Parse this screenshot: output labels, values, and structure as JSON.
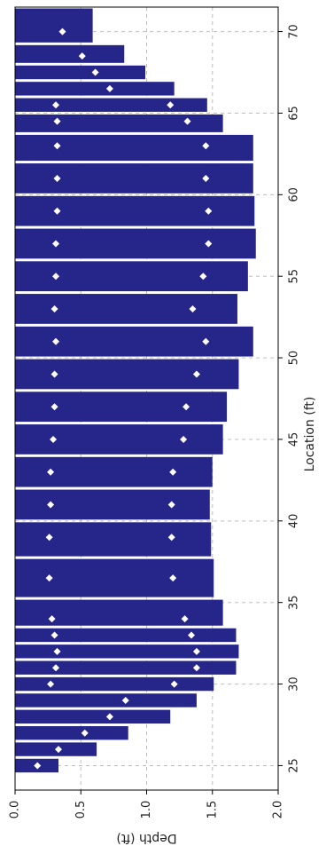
{
  "chart_data": {
    "type": "bar",
    "orientation": "horizontal-bars-rotated",
    "xlabel": "Location (ft)",
    "ylabel": "Depth (ft)",
    "x_ticks": [
      "25",
      "30",
      "35",
      "40",
      "45",
      "50",
      "55",
      "60",
      "65",
      "70"
    ],
    "y_ticks": [
      "0.0",
      "0.5",
      "1.0",
      "1.5",
      "2.0"
    ],
    "xlim": [
      23.5,
      71.5
    ],
    "ylim": [
      0,
      2.0
    ],
    "grid": true,
    "colors": {
      "bar": "#26268a",
      "marker": "#ffffff",
      "grid": "#bdbdbd"
    },
    "bars": [
      {
        "x": 25.0,
        "depth": 0.33,
        "markers": [
          0.17
        ]
      },
      {
        "x": 26.0,
        "depth": 0.62,
        "markers": [
          0.33
        ]
      },
      {
        "x": 27.0,
        "depth": 0.86,
        "markers": [
          0.53
        ]
      },
      {
        "x": 28.0,
        "depth": 1.18,
        "markers": [
          0.72
        ]
      },
      {
        "x": 29.0,
        "depth": 1.38,
        "markers": [
          0.84
        ]
      },
      {
        "x": 30.0,
        "depth": 1.51,
        "markers": [
          0.27,
          1.21
        ]
      },
      {
        "x": 31.0,
        "depth": 1.68,
        "markers": [
          0.31,
          1.38
        ]
      },
      {
        "x": 32.0,
        "depth": 1.7,
        "markers": [
          0.32,
          1.38
        ]
      },
      {
        "x": 33.0,
        "depth": 1.68,
        "markers": [
          0.3,
          1.34
        ]
      },
      {
        "x": 34.0,
        "depth": 1.58,
        "markers": [
          0.28,
          1.29
        ]
      },
      {
        "x": 36.5,
        "depth": 1.51,
        "markers": [
          0.26,
          1.2
        ]
      },
      {
        "x": 39.0,
        "depth": 1.49,
        "markers": [
          0.26,
          1.19
        ]
      },
      {
        "x": 41.0,
        "depth": 1.48,
        "markers": [
          0.27,
          1.19
        ]
      },
      {
        "x": 43.0,
        "depth": 1.5,
        "markers": [
          0.27,
          1.2
        ]
      },
      {
        "x": 45.0,
        "depth": 1.58,
        "markers": [
          0.29,
          1.28
        ]
      },
      {
        "x": 47.0,
        "depth": 1.61,
        "markers": [
          0.3,
          1.3
        ]
      },
      {
        "x": 49.0,
        "depth": 1.7,
        "markers": [
          0.3,
          1.38
        ]
      },
      {
        "x": 51.0,
        "depth": 1.81,
        "markers": [
          0.31,
          1.45
        ]
      },
      {
        "x": 53.0,
        "depth": 1.69,
        "markers": [
          0.3,
          1.35
        ]
      },
      {
        "x": 55.0,
        "depth": 1.77,
        "markers": [
          0.31,
          1.43
        ]
      },
      {
        "x": 57.0,
        "depth": 1.83,
        "markers": [
          0.31,
          1.47
        ]
      },
      {
        "x": 59.0,
        "depth": 1.82,
        "markers": [
          0.32,
          1.47
        ]
      },
      {
        "x": 61.0,
        "depth": 1.81,
        "markers": [
          0.32,
          1.45
        ]
      },
      {
        "x": 63.0,
        "depth": 1.81,
        "markers": [
          0.32,
          1.45
        ]
      },
      {
        "x": 64.5,
        "depth": 1.58,
        "markers": [
          0.32,
          1.31
        ]
      },
      {
        "x": 65.5,
        "depth": 1.46,
        "markers": [
          0.31,
          1.18
        ]
      },
      {
        "x": 66.5,
        "depth": 1.21,
        "markers": [
          0.72
        ]
      },
      {
        "x": 67.5,
        "depth": 0.99,
        "markers": [
          0.61
        ]
      },
      {
        "x": 68.5,
        "depth": 0.83,
        "markers": [
          0.51
        ]
      },
      {
        "x": 70.0,
        "depth": 0.59,
        "markers": [
          0.36
        ]
      }
    ]
  }
}
